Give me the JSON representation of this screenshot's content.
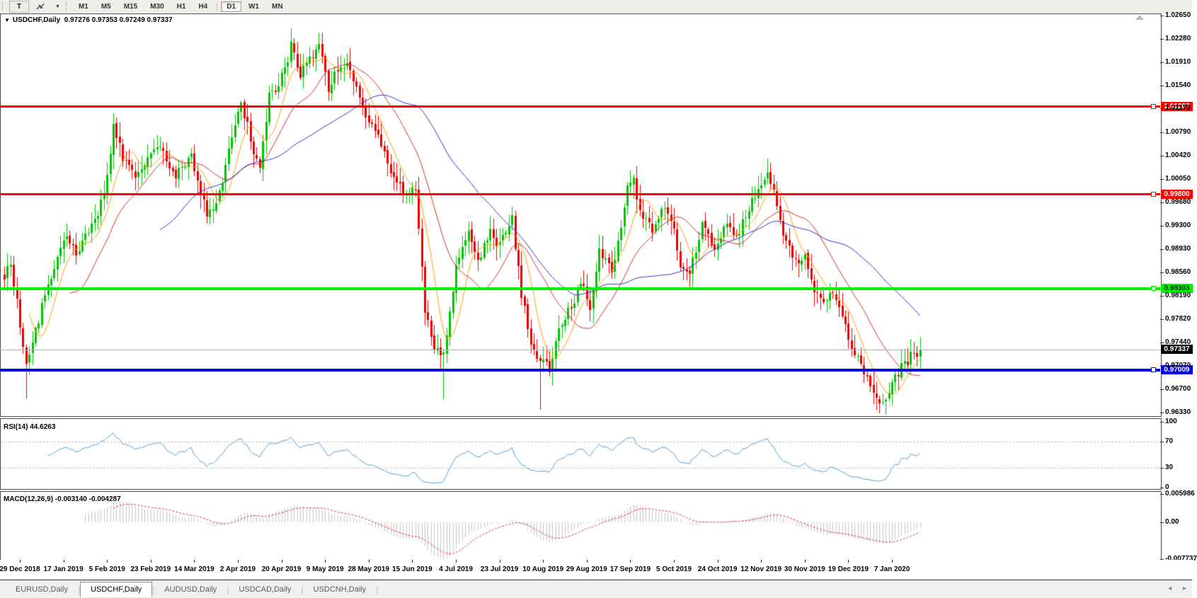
{
  "toolbar": {
    "text_tool_label": "T",
    "timeframes": [
      "M1",
      "M5",
      "M15",
      "M30",
      "H1",
      "H4",
      "D1",
      "W1",
      "MN"
    ],
    "active_timeframe": "D1"
  },
  "title": {
    "symbol": "USDCHF,Daily",
    "open": "0.97276",
    "high": "0.97353",
    "low": "0.97249",
    "close": "0.97337"
  },
  "price_axis": {
    "ticks": [
      "1.02650",
      "1.02280",
      "1.01910",
      "1.01540",
      "1.01170",
      "1.00790",
      "1.00420",
      "1.00050",
      "0.99680",
      "0.99300",
      "0.98930",
      "0.98560",
      "0.98190",
      "0.97820",
      "0.97440",
      "0.97070",
      "0.96700",
      "0.96330"
    ]
  },
  "levels": [
    {
      "label": "1.01207",
      "value": 1.01207,
      "color": "#FF0000",
      "text_color": "#FFFFFF",
      "thickness": 3
    },
    {
      "label": "0.99800",
      "value": 0.998,
      "color": "#FF0000",
      "text_color": "#FFFFFF",
      "thickness": 3
    },
    {
      "label": "0.98303",
      "value": 0.98303,
      "color": "#00EE00",
      "text_color": "#003300",
      "thickness": 4
    },
    {
      "label": "0.97009",
      "value": 0.97009,
      "color": "#0000E6",
      "text_color": "#FFFFFF",
      "thickness": 4
    }
  ],
  "current_price": {
    "label": "0.97337",
    "value": 0.97337,
    "line_color": "#B4B4B4",
    "tag_bg": "#000000",
    "tag_text": "#FFFFFF"
  },
  "rsi_panel": {
    "label": "RSI(14) 44.6263",
    "ticks": [
      {
        "label": "100",
        "value": 100,
        "dashed": false
      },
      {
        "label": "70",
        "value": 70,
        "dashed": true
      },
      {
        "label": "30",
        "value": 30,
        "dashed": true
      },
      {
        "label": "0",
        "value": 0,
        "dashed": false
      }
    ]
  },
  "macd_panel": {
    "label": "MACD(12,26,9) -0.003140 -0.004287",
    "ticks": [
      {
        "label": "0.005986",
        "value": 0.005986
      },
      {
        "label": "0.00",
        "value": 0
      },
      {
        "label": "-0.007737",
        "value": -0.007737
      }
    ]
  },
  "date_axis": [
    "29 Dec 2018",
    "17 Jan 2019",
    "5 Feb 2019",
    "23 Feb 2019",
    "14 Mar 2019",
    "2 Apr 2019",
    "20 Apr 2019",
    "9 May 2019",
    "28 May 2019",
    "15 Jun 2019",
    "4 Jul 2019",
    "23 Jul 2019",
    "10 Aug 2019",
    "29 Aug 2019",
    "17 Sep 2019",
    "5 Oct 2019",
    "24 Oct 2019",
    "12 Nov 2019",
    "30 Nov 2019",
    "19 Dec 2019",
    "7 Jan 2020"
  ],
  "tabs": [
    {
      "label": "EURUSD,Daily",
      "active": false
    },
    {
      "label": "USDCHF,Daily",
      "active": true
    },
    {
      "label": "AUDUSD,Daily",
      "active": false
    },
    {
      "label": "USDCAD,Daily",
      "active": false
    },
    {
      "label": "USDCNH,Daily",
      "active": false
    }
  ],
  "tab_scroll": {
    "left": "◄",
    "right": "►"
  },
  "chart_data": {
    "type": "candlestick",
    "symbol": "USDCHF",
    "timeframe": "Daily",
    "days": 295,
    "price_axis_top": 1.0265,
    "price_axis_bottom": 0.9633,
    "last_close": 0.97337,
    "bull_color": "#00C400",
    "bear_color": "#EE0000",
    "close_anchors": [
      [
        0,
        0.9852
      ],
      [
        2,
        0.9872
      ],
      [
        4,
        0.9808
      ],
      [
        7,
        0.9712
      ],
      [
        9,
        0.9748
      ],
      [
        12,
        0.98
      ],
      [
        16,
        0.9862
      ],
      [
        20,
        0.9916
      ],
      [
        23,
        0.9884
      ],
      [
        26,
        0.9914
      ],
      [
        30,
        0.9952
      ],
      [
        33,
        1.0005
      ],
      [
        35,
        1.0092
      ],
      [
        38,
        1.0038
      ],
      [
        42,
        1.0006
      ],
      [
        47,
        1.004
      ],
      [
        50,
        1.0058
      ],
      [
        55,
        1.001
      ],
      [
        60,
        1.0038
      ],
      [
        65,
        0.9948
      ],
      [
        68,
        0.9962
      ],
      [
        72,
        1.005
      ],
      [
        76,
        1.0128
      ],
      [
        79,
        1.0068
      ],
      [
        82,
        1.0018
      ],
      [
        85,
        1.014
      ],
      [
        88,
        1.0155
      ],
      [
        90,
        1.0178
      ],
      [
        92,
        1.0215
      ],
      [
        95,
        1.0168
      ],
      [
        99,
        1.0205
      ],
      [
        101,
        1.0224
      ],
      [
        104,
        1.015
      ],
      [
        107,
        1.0182
      ],
      [
        110,
        1.019
      ],
      [
        113,
        1.0148
      ],
      [
        117,
        1.0098
      ],
      [
        121,
        1.0062
      ],
      [
        124,
        1.0008
      ],
      [
        129,
        0.9982
      ],
      [
        132,
        0.9992
      ],
      [
        135,
        0.9795
      ],
      [
        138,
        0.9732
      ],
      [
        141,
        0.9722
      ],
      [
        145,
        0.9862
      ],
      [
        149,
        0.9928
      ],
      [
        152,
        0.9872
      ],
      [
        156,
        0.992
      ],
      [
        159,
        0.9898
      ],
      [
        163,
        0.994
      ],
      [
        166,
        0.9822
      ],
      [
        169,
        0.9748
      ],
      [
        172,
        0.9716
      ],
      [
        175,
        0.9702
      ],
      [
        178,
        0.9768
      ],
      [
        182,
        0.98
      ],
      [
        185,
        0.984
      ],
      [
        188,
        0.9802
      ],
      [
        191,
        0.9888
      ],
      [
        195,
        0.9862
      ],
      [
        198,
        0.9922
      ],
      [
        200,
        0.9992
      ],
      [
        202,
        1.0006
      ],
      [
        204,
        0.9952
      ],
      [
        208,
        0.9922
      ],
      [
        211,
        0.9962
      ],
      [
        215,
        0.9932
      ],
      [
        217,
        0.9862
      ],
      [
        220,
        0.9852
      ],
      [
        224,
        0.9936
      ],
      [
        228,
        0.9896
      ],
      [
        232,
        0.994
      ],
      [
        235,
        0.9912
      ],
      [
        238,
        0.995
      ],
      [
        242,
        0.999
      ],
      [
        245,
        1.0018
      ],
      [
        248,
        0.9962
      ],
      [
        251,
        0.99
      ],
      [
        254,
        0.9872
      ],
      [
        257,
        0.9882
      ],
      [
        260,
        0.9832
      ],
      [
        263,
        0.9802
      ],
      [
        266,
        0.9826
      ],
      [
        269,
        0.9782
      ],
      [
        272,
        0.9736
      ],
      [
        276,
        0.97
      ],
      [
        278,
        0.9672
      ],
      [
        281,
        0.9648
      ],
      [
        283,
        0.9652
      ],
      [
        285,
        0.9682
      ],
      [
        288,
        0.9706
      ],
      [
        291,
        0.9722
      ],
      [
        294,
        0.97337
      ]
    ],
    "wick_events": [
      {
        "day": 7,
        "low": 0.9656
      },
      {
        "day": 35,
        "high": 1.0098
      },
      {
        "day": 92,
        "high": 1.0245
      },
      {
        "day": 101,
        "high": 1.0238
      },
      {
        "day": 141,
        "low": 0.9654
      },
      {
        "day": 172,
        "low": 0.9638
      },
      {
        "day": 281,
        "low": 0.9632
      }
    ],
    "moving_averages": [
      {
        "period": 8,
        "color": "#FF9C00"
      },
      {
        "period": 21,
        "color": "#D42A2A"
      },
      {
        "period": 50,
        "color": "#2B32C8"
      }
    ],
    "rsi": {
      "period": 14,
      "color": "#4FA0D8",
      "dashed_levels": [
        70,
        30
      ]
    },
    "macd": {
      "fast": 12,
      "slow": 26,
      "signal": 9,
      "histogram_color": "#C6C6C6",
      "signal_color": "#E03030",
      "axis_max": 0.005986,
      "axis_min": -0.007737
    }
  }
}
